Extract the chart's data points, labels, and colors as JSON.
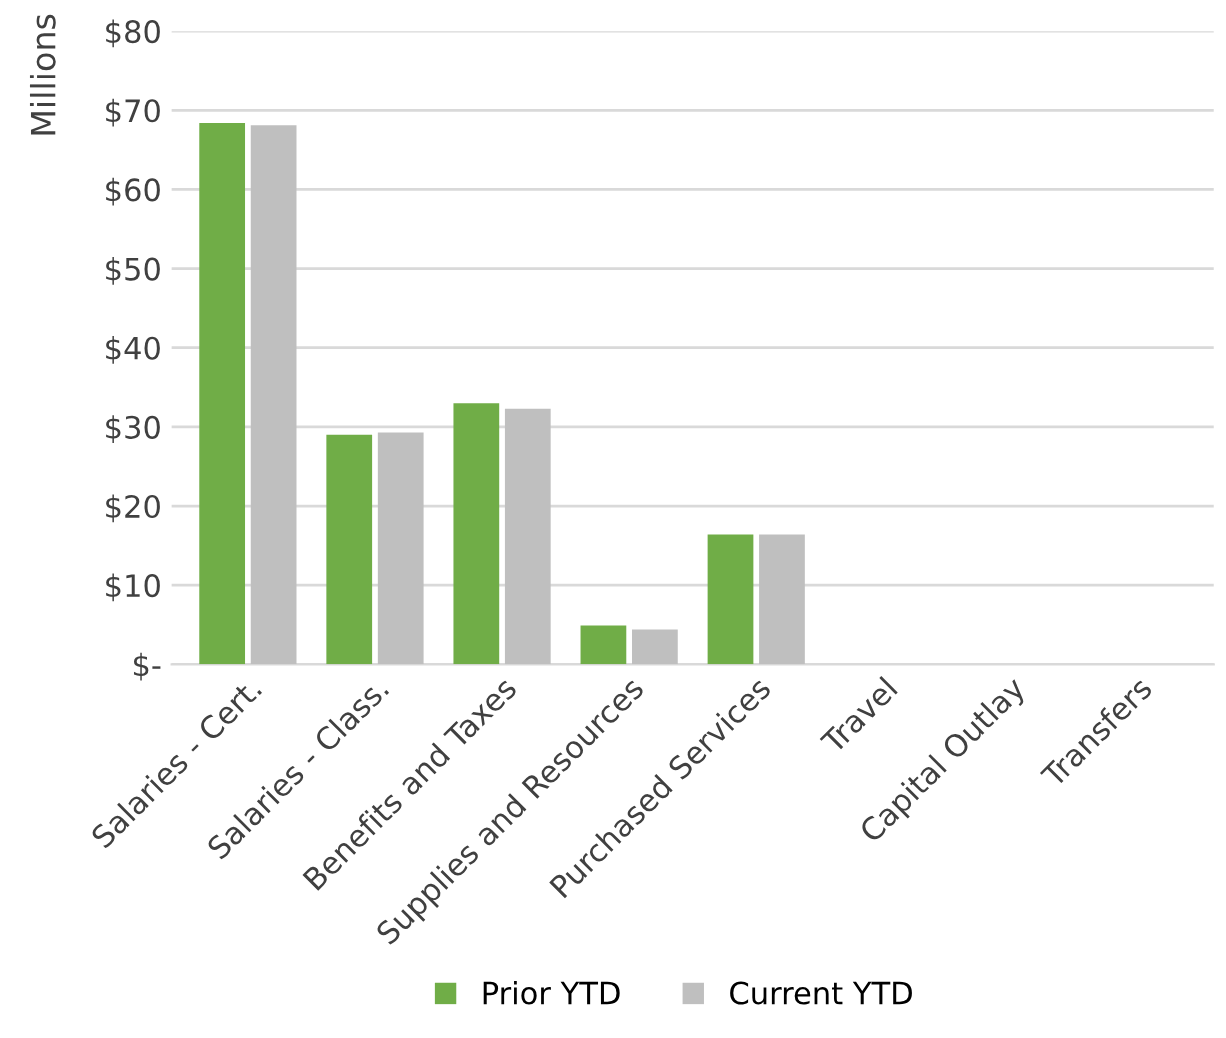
{
  "chart_data": {
    "type": "bar",
    "ylabel": "Millions",
    "categories": [
      "Salaries - Cert.",
      "Salaries - Class.",
      "Benefits and Taxes",
      "Supplies and Resources",
      "Purchased Services",
      "Travel",
      "Capital Outlay",
      "Transfers"
    ],
    "series": [
      {
        "name": "Prior YTD",
        "color": "#70ad47",
        "values": [
          68.4,
          29.0,
          33.0,
          4.9,
          16.4,
          0,
          0,
          0
        ]
      },
      {
        "name": "Current YTD",
        "color": "#bfbfbf",
        "values": [
          68.1,
          29.3,
          32.3,
          4.4,
          16.4,
          0,
          0,
          0
        ]
      }
    ],
    "ylim": [
      0,
      80
    ],
    "yticks": [
      {
        "value": 0,
        "label": "$-"
      },
      {
        "value": 10,
        "label": "$10"
      },
      {
        "value": 20,
        "label": "$20"
      },
      {
        "value": 30,
        "label": "$30"
      },
      {
        "value": 40,
        "label": "$40"
      },
      {
        "value": 50,
        "label": "$50"
      },
      {
        "value": 60,
        "label": "$60"
      },
      {
        "value": 70,
        "label": "$70"
      },
      {
        "value": 80,
        "label": "$80"
      }
    ],
    "grid": "y",
    "legend": "bottom"
  }
}
